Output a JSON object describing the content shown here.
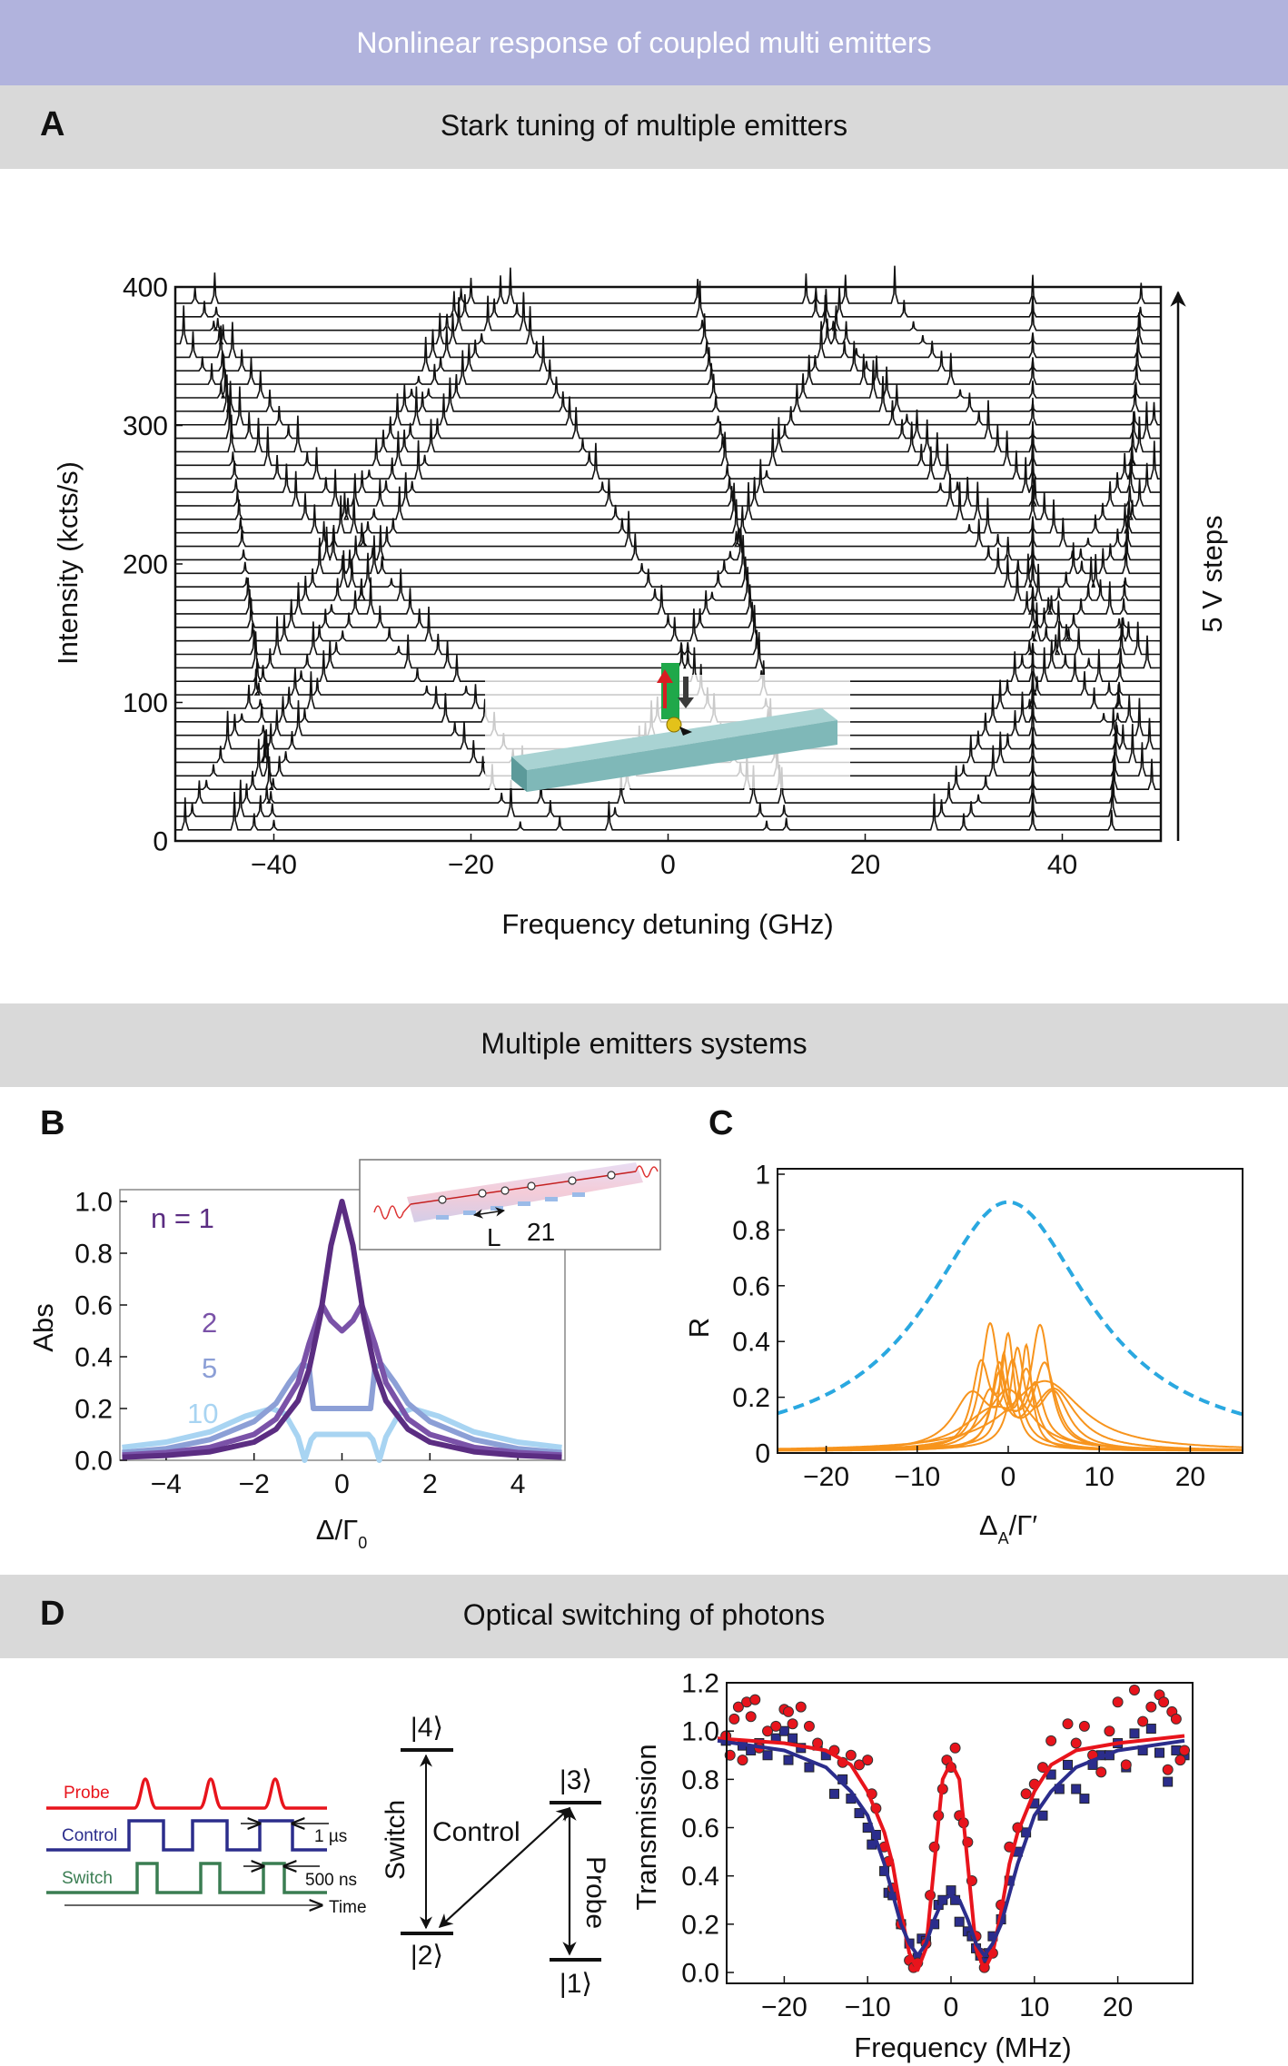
{
  "banner": {
    "title": "Nonlinear response of coupled multi emitters"
  },
  "sections": {
    "a": {
      "letter": "A",
      "title": "Stark tuning of multiple emitters"
    },
    "bc": {
      "title": "Multiple emitters systems"
    },
    "d": {
      "letter": "D",
      "title": "Optical switching of photons"
    }
  },
  "panel_labels": {
    "b": "B",
    "c": "C"
  },
  "colors": {
    "banner": "#b1b3dd",
    "section_header": "#d9d9d9",
    "n1": "#5b2d82",
    "n2": "#7a52a8",
    "n5": "#8c9fd6",
    "n10": "#a8d4f2",
    "orange": "#f7941d",
    "dashed_blue": "#2aa8e0",
    "red": "#e8141c",
    "navy": "#2b2d8c",
    "green": "#3a7d52"
  },
  "chart_data": [
    {
      "panel": "A",
      "type": "line",
      "xlabel": "Frequency detuning (GHz)",
      "ylabel": "Intensity (kcts/s)",
      "xlim": [
        -50,
        50
      ],
      "ylim": [
        0,
        400
      ],
      "xticks": [
        "−40",
        "−20",
        "0",
        "20",
        "40"
      ],
      "xtick_values": [
        -40,
        -20,
        0,
        20,
        40
      ],
      "yticks": [
        "0",
        "100",
        "200",
        "300",
        "400"
      ],
      "ytick_values": [
        0,
        100,
        200,
        300,
        400
      ],
      "annotation": "5 V steps",
      "trace_count": 40,
      "trace_offset": 9.75,
      "emitter_lines": [
        {
          "f_bottom": -15,
          "f_top": -52
        },
        {
          "f_bottom": -11,
          "f_top": -48
        },
        {
          "f_bottom": -44,
          "f_top": -20
        },
        {
          "f_bottom": -42,
          "f_top": -17
        },
        {
          "f_bottom": -49,
          "f_top": -21
        },
        {
          "f_bottom": -40,
          "f_top": -46
        },
        {
          "f_bottom": 10,
          "f_top": -16
        },
        {
          "f_bottom": 12,
          "f_top": 3
        },
        {
          "f_bottom": -6,
          "f_top": 18
        },
        {
          "f_bottom": 27,
          "f_top": 56
        },
        {
          "f_bottom": 30,
          "f_top": 59
        },
        {
          "f_bottom": 52,
          "f_top": 14
        },
        {
          "f_bottom": 55,
          "f_top": 15
        },
        {
          "f_bottom": 60,
          "f_top": 23
        },
        {
          "f_bottom": 37,
          "f_top": 37
        },
        {
          "f_bottom": 45,
          "f_top": 48
        }
      ]
    },
    {
      "panel": "B",
      "type": "line",
      "xlabel": "Δ/Γ",
      "xlabel_sub": "0",
      "ylabel": "Abs",
      "xlim": [
        -5,
        5
      ],
      "ylim": [
        0,
        1.05
      ],
      "xticks": [
        "−4",
        "−2",
        "0",
        "2",
        "4"
      ],
      "xtick_values": [
        -4,
        -2,
        0,
        2,
        4
      ],
      "yticks": [
        "0.0",
        "0.2",
        "0.4",
        "0.6",
        "0.8",
        "1.0"
      ],
      "ytick_values": [
        0,
        0.2,
        0.4,
        0.6,
        0.8,
        1.0
      ],
      "series": [
        {
          "name": "n = 1",
          "color_key": "n1",
          "x": [
            -5,
            -4,
            -3,
            -2,
            -1.5,
            -1,
            -0.75,
            -0.5,
            -0.25,
            0,
            0.25,
            0.5,
            0.75,
            1,
            1.5,
            2,
            3,
            4,
            5
          ],
          "y": [
            0.012,
            0.019,
            0.033,
            0.07,
            0.12,
            0.23,
            0.35,
            0.55,
            0.83,
            1.0,
            0.83,
            0.55,
            0.35,
            0.23,
            0.12,
            0.07,
            0.033,
            0.019,
            0.012
          ]
        },
        {
          "name": "2",
          "color_key": "n2",
          "x": [
            -5,
            -4,
            -3,
            -2,
            -1.5,
            -1,
            -0.75,
            -0.45,
            -0.25,
            0,
            0.25,
            0.45,
            0.75,
            1,
            1.5,
            2,
            3,
            4,
            5
          ],
          "y": [
            0.02,
            0.03,
            0.05,
            0.1,
            0.16,
            0.3,
            0.45,
            0.6,
            0.54,
            0.5,
            0.54,
            0.6,
            0.45,
            0.3,
            0.16,
            0.1,
            0.05,
            0.03,
            0.02
          ]
        },
        {
          "name": "5",
          "color_key": "n5",
          "x": [
            -5,
            -4,
            -3,
            -2,
            -1.5,
            -1.2,
            -0.9,
            -0.75,
            -0.65,
            -0.5,
            0,
            0.5,
            0.65,
            0.75,
            0.9,
            1.2,
            1.5,
            2,
            3,
            4,
            5
          ],
          "y": [
            0.03,
            0.045,
            0.08,
            0.15,
            0.22,
            0.3,
            0.37,
            0.36,
            0.2,
            0.2,
            0.2,
            0.2,
            0.2,
            0.36,
            0.37,
            0.3,
            0.22,
            0.15,
            0.08,
            0.045,
            0.03
          ]
        },
        {
          "name": "10",
          "color_key": "n10",
          "x": [
            -5,
            -4,
            -3,
            -2.2,
            -1.6,
            -1.3,
            -1.0,
            -0.85,
            -0.7,
            -0.6,
            0,
            0.6,
            0.7,
            0.85,
            1.0,
            1.3,
            1.6,
            2.2,
            3,
            4,
            5
          ],
          "y": [
            0.05,
            0.07,
            0.11,
            0.17,
            0.2,
            0.18,
            0.09,
            0.0,
            0.08,
            0.1,
            0.1,
            0.1,
            0.08,
            0.0,
            0.09,
            0.18,
            0.2,
            0.17,
            0.11,
            0.07,
            0.05
          ]
        }
      ],
      "inset": {
        "label_l": "L",
        "label_21": "21"
      }
    },
    {
      "panel": "C",
      "type": "line",
      "xlabel": "Δ",
      "xlabel_sub": "A",
      "xlabel_tail": "/Γ′",
      "ylabel": "R",
      "xlim": [
        -25.4,
        25.8
      ],
      "ylim": [
        0,
        1
      ],
      "xticks": [
        "−20",
        "−10",
        "0",
        "10",
        "20"
      ],
      "xtick_values": [
        -20,
        -10,
        0,
        10,
        20
      ],
      "yticks": [
        "0",
        "0.2",
        "0.4",
        "0.6",
        "0.8",
        "1"
      ],
      "ytick_values": [
        0,
        0.2,
        0.4,
        0.6,
        0.8,
        1
      ],
      "dashed_series": {
        "peak": 0.9,
        "half_width": 11
      },
      "orange_series": [
        [
          [
            -2,
            0.44,
            1.2
          ],
          [
            4,
            0.3,
            1.5
          ]
        ],
        [
          [
            3.5,
            0.44,
            1.3
          ],
          [
            -1,
            0.25,
            1
          ]
        ],
        [
          [
            0,
            0.38,
            0.8
          ],
          [
            -3,
            0.3,
            1.2
          ]
        ],
        [
          [
            1,
            0.33,
            0.9
          ],
          [
            5,
            0.2,
            2
          ]
        ],
        [
          [
            -1,
            0.3,
            1
          ],
          [
            2,
            0.35,
            0.7
          ]
        ],
        [
          [
            -4,
            0.2,
            2.5
          ],
          [
            0.5,
            0.28,
            1
          ]
        ],
        [
          [
            2,
            0.27,
            1.2
          ],
          [
            -2,
            0.2,
            1.5
          ]
        ],
        [
          [
            0,
            0.22,
            3
          ]
        ],
        [
          [
            -1.5,
            0.15,
            4
          ],
          [
            3,
            0.18,
            1
          ]
        ],
        [
          [
            5,
            0.22,
            3
          ],
          [
            -0.5,
            0.3,
            0.6
          ]
        ],
        [
          [
            4,
            0.25,
            5
          ]
        ]
      ]
    },
    {
      "panel": "D",
      "type": "scatter",
      "xlabel": "Frequency (MHz)",
      "ylabel": "Transmission",
      "xlim": [
        -27,
        29
      ],
      "ylim": [
        -0.03,
        1.2
      ],
      "xticks": [
        "−20",
        "−10",
        "0",
        "10",
        "20"
      ],
      "xtick_values": [
        -20,
        -10,
        0,
        10,
        20
      ],
      "yticks": [
        "0.0",
        "0.2",
        "0.4",
        "0.6",
        "0.8",
        "1.0",
        "1.2"
      ],
      "ytick_values": [
        0,
        0.2,
        0.4,
        0.6,
        0.8,
        1.0,
        1.2
      ],
      "red_fit": {
        "x": [
          -28,
          -20,
          -15,
          -12,
          -10,
          -8,
          -7,
          -6,
          -5,
          -4,
          -3,
          -2,
          -1,
          0,
          1,
          2,
          3,
          4,
          5,
          6,
          7,
          8,
          10,
          12,
          15,
          20,
          28
        ],
        "y": [
          0.97,
          0.95,
          0.92,
          0.86,
          0.75,
          0.58,
          0.45,
          0.25,
          0.08,
          0.01,
          0.1,
          0.45,
          0.8,
          0.87,
          0.8,
          0.45,
          0.1,
          0.01,
          0.08,
          0.25,
          0.45,
          0.58,
          0.75,
          0.86,
          0.92,
          0.95,
          0.98
        ]
      },
      "blue_fit": {
        "x": [
          -28,
          -20,
          -15,
          -12,
          -10,
          -8,
          -6,
          -5,
          -4,
          -3,
          -2,
          -1,
          0,
          1,
          2,
          3,
          4,
          5,
          6,
          8,
          10,
          12,
          15,
          20,
          28
        ],
        "y": [
          0.96,
          0.92,
          0.85,
          0.75,
          0.65,
          0.45,
          0.2,
          0.12,
          0.07,
          0.12,
          0.22,
          0.3,
          0.32,
          0.3,
          0.22,
          0.12,
          0.07,
          0.12,
          0.2,
          0.45,
          0.65,
          0.75,
          0.85,
          0.92,
          0.96
        ]
      },
      "red_points": [
        [
          -27,
          0.98
        ],
        [
          -26.5,
          0.9
        ],
        [
          -26,
          1.05
        ],
        [
          -25.5,
          1.1
        ],
        [
          -25,
          0.88
        ],
        [
          -24.5,
          1.12
        ],
        [
          -24,
          1.06
        ],
        [
          -23.5,
          1.13
        ],
        [
          -23,
          0.93
        ],
        [
          -22,
          1.0
        ],
        [
          -21,
          1.02
        ],
        [
          -20,
          1.09
        ],
        [
          -19.5,
          1.08
        ],
        [
          -19,
          1.03
        ],
        [
          -18,
          1.1
        ],
        [
          -17,
          1.02
        ],
        [
          -16,
          0.95
        ],
        [
          -14,
          0.92
        ],
        [
          -13,
          0.87
        ],
        [
          -12,
          0.9
        ],
        [
          -11,
          0.86
        ],
        [
          -10,
          0.88
        ],
        [
          -9.5,
          0.74
        ],
        [
          -9,
          0.68
        ],
        [
          -8,
          0.52
        ],
        [
          -7.5,
          0.46
        ],
        [
          -7,
          0.35
        ],
        [
          -6,
          0.2
        ],
        [
          -5,
          0.05
        ],
        [
          -4.5,
          0.02
        ],
        [
          -4,
          0.04
        ],
        [
          -3,
          0.12
        ],
        [
          -2.5,
          0.32
        ],
        [
          -2,
          0.52
        ],
        [
          -1.5,
          0.65
        ],
        [
          -1,
          0.76
        ],
        [
          -0.5,
          0.88
        ],
        [
          0,
          0.85
        ],
        [
          0.5,
          0.93
        ],
        [
          1,
          0.65
        ],
        [
          1.5,
          0.62
        ],
        [
          2,
          0.54
        ],
        [
          2.5,
          0.38
        ],
        [
          3,
          0.15
        ],
        [
          3.5,
          0.08
        ],
        [
          4,
          0.02
        ],
        [
          5,
          0.08
        ],
        [
          6,
          0.28
        ],
        [
          7,
          0.52
        ],
        [
          8,
          0.6
        ],
        [
          9,
          0.74
        ],
        [
          10,
          0.78
        ],
        [
          11,
          0.85
        ],
        [
          12,
          0.96
        ],
        [
          14,
          1.03
        ],
        [
          15,
          0.95
        ],
        [
          16,
          1.02
        ],
        [
          17,
          0.9
        ],
        [
          18,
          0.83
        ],
        [
          19,
          1.0
        ],
        [
          20,
          1.12
        ],
        [
          21,
          0.86
        ],
        [
          22,
          1.17
        ],
        [
          23,
          1.04
        ],
        [
          24,
          1.1
        ],
        [
          25,
          1.15
        ],
        [
          25.5,
          1.12
        ],
        [
          26,
          0.84
        ],
        [
          26.5,
          1.08
        ],
        [
          27,
          1.05
        ],
        [
          27.5,
          0.88
        ],
        [
          28,
          0.92
        ]
      ],
      "blue_points": [
        [
          -27,
          0.96
        ],
        [
          -25,
          0.94
        ],
        [
          -24,
          0.92
        ],
        [
          -23,
          0.95
        ],
        [
          -22,
          0.9
        ],
        [
          -21,
          0.97
        ],
        [
          -20,
          1.0
        ],
        [
          -19.5,
          0.88
        ],
        [
          -19,
          0.97
        ],
        [
          -18,
          0.93
        ],
        [
          -17,
          0.85
        ],
        [
          -16,
          0.94
        ],
        [
          -15,
          0.9
        ],
        [
          -14,
          0.74
        ],
        [
          -13,
          0.8
        ],
        [
          -12,
          0.72
        ],
        [
          -11,
          0.66
        ],
        [
          -10,
          0.6
        ],
        [
          -9.5,
          0.53
        ],
        [
          -9,
          0.57
        ],
        [
          -8,
          0.42
        ],
        [
          -7.5,
          0.33
        ],
        [
          -7,
          0.32
        ],
        [
          -6,
          0.2
        ],
        [
          -5,
          0.12
        ],
        [
          -4.5,
          0.05
        ],
        [
          -4,
          0.06
        ],
        [
          -3.5,
          0.14
        ],
        [
          -3,
          0.13
        ],
        [
          -2,
          0.2
        ],
        [
          -1.5,
          0.28
        ],
        [
          -1,
          0.3
        ],
        [
          0,
          0.34
        ],
        [
          0.5,
          0.3
        ],
        [
          1,
          0.21
        ],
        [
          2,
          0.17
        ],
        [
          2.5,
          0.15
        ],
        [
          3,
          0.1
        ],
        [
          3.5,
          0.07
        ],
        [
          4,
          0.06
        ],
        [
          4.5,
          0.08
        ],
        [
          5,
          0.15
        ],
        [
          6,
          0.22
        ],
        [
          7,
          0.38
        ],
        [
          8,
          0.5
        ],
        [
          9,
          0.58
        ],
        [
          10,
          0.7
        ],
        [
          11,
          0.65
        ],
        [
          12,
          0.82
        ],
        [
          13,
          0.76
        ],
        [
          14,
          0.86
        ],
        [
          15,
          0.76
        ],
        [
          16,
          0.72
        ],
        [
          17,
          0.86
        ],
        [
          18,
          0.9
        ],
        [
          19,
          0.9
        ],
        [
          20,
          0.95
        ],
        [
          21,
          0.85
        ],
        [
          22,
          0.99
        ],
        [
          23,
          0.92
        ],
        [
          24,
          1.01
        ],
        [
          25,
          0.91
        ],
        [
          26,
          0.79
        ],
        [
          27,
          0.92
        ],
        [
          28,
          0.9
        ]
      ]
    }
  ],
  "timing_diagram": {
    "probe": "Probe",
    "control": "Control",
    "switch": "Switch",
    "control_width": "1 µs",
    "switch_width": "500 ns",
    "time": "Time"
  },
  "level_diagram": {
    "level4": "|4⟩",
    "level3": "|3⟩",
    "level2": "|2⟩",
    "level1": "|1⟩",
    "switch": "Switch",
    "control": "Control",
    "probe": "Probe"
  }
}
